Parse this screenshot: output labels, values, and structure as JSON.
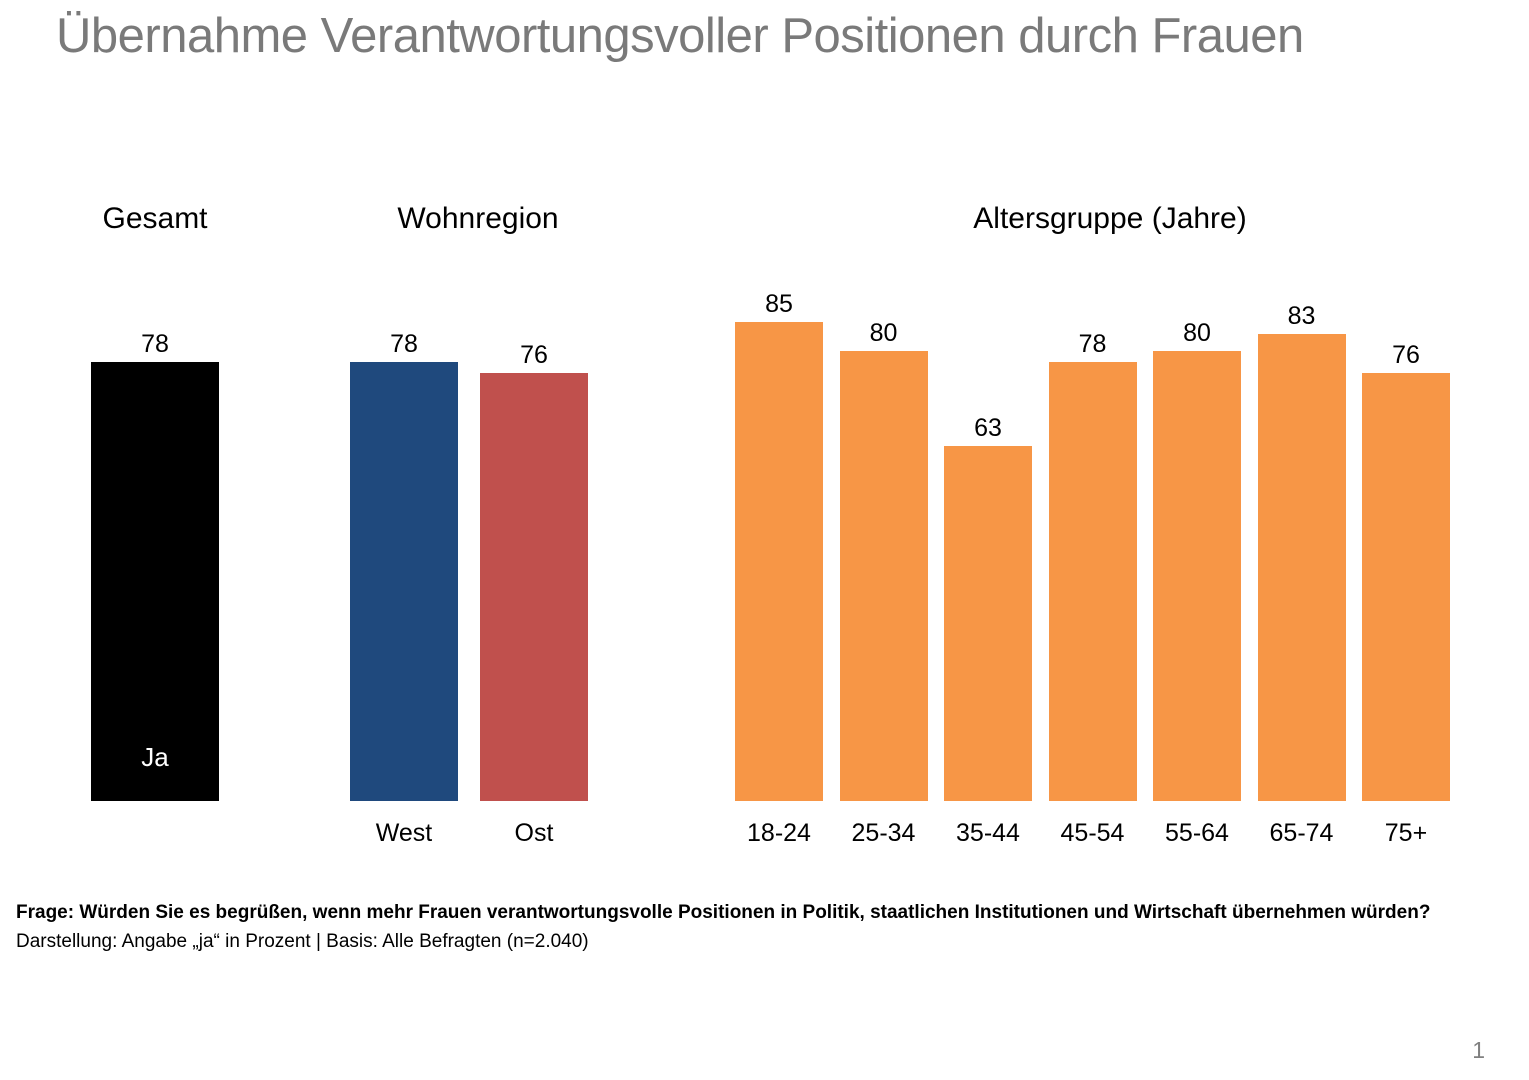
{
  "title": "Übernahme Verantwortungsvoller Positionen durch Frauen",
  "footnote": {
    "line1": "Frage: Würden Sie es begrüßen, wenn mehr Frauen verantwortungsvolle Positionen in Politik, staatlichen Institutionen und Wirtschaft übernehmen würden?",
    "line2": "Darstellung: Angabe „ja“ in Prozent | Basis: Alle Befragten (n=2.040)"
  },
  "page_number": "1",
  "chart_data": {
    "type": "bar",
    "title": "Übernahme Verantwortungsvoller Positionen durch Frauen",
    "unit": "Prozent",
    "ylim": [
      0,
      100
    ],
    "grid": false,
    "legend": false,
    "groups": [
      {
        "header": "Gesamt",
        "categories": [
          "Ja"
        ],
        "values": [
          78
        ],
        "bar_color": "#000000",
        "label_position": "inside"
      },
      {
        "header": "Wohnregion",
        "categories": [
          "West",
          "Ost"
        ],
        "values": [
          78,
          76
        ],
        "bar_colors": [
          "#1F497D",
          "#C0504D"
        ],
        "label_position": "below"
      },
      {
        "header": "Altersgruppe (Jahre)",
        "categories": [
          "18-24",
          "25-34",
          "35-44",
          "45-54",
          "55-64",
          "65-74",
          "75+"
        ],
        "values": [
          85,
          80,
          63,
          78,
          80,
          83,
          76
        ],
        "bar_color": "#F79646",
        "label_position": "below"
      }
    ]
  }
}
